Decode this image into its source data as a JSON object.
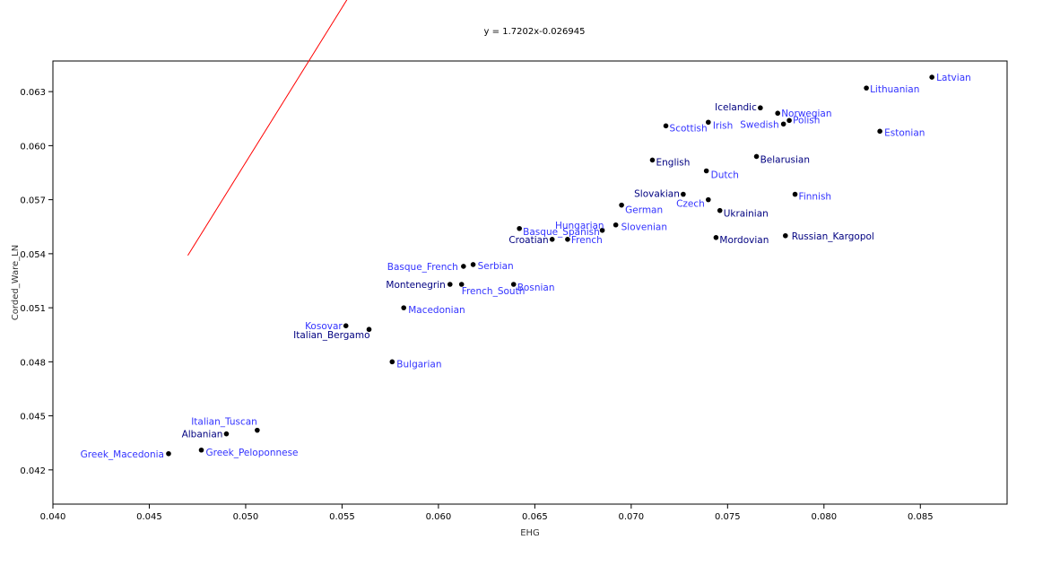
{
  "chart_data": {
    "type": "scatter",
    "title": "y = 1.7202x-0.026945",
    "xlabel": "EHG",
    "ylabel": "Corded_Ware_LN",
    "xlim": [
      0.04,
      0.0895
    ],
    "ylim": [
      0.0401,
      0.0647
    ],
    "xticks": [
      "0.040",
      "0.045",
      "0.050",
      "0.055",
      "0.060",
      "0.065",
      "0.070",
      "0.075",
      "0.080",
      "0.085"
    ],
    "yticks": [
      "0.042",
      "0.045",
      "0.048",
      "0.051",
      "0.054",
      "0.057",
      "0.060",
      "0.063"
    ],
    "trendline": {
      "slope": 1.7202,
      "intercept": -0.026945,
      "x_start": 0.047,
      "x_end": 0.0824,
      "color": "#ff0000"
    },
    "colors": {
      "blue_label": "#3333ff",
      "navy_label": "#000080",
      "point": "#000000",
      "axis": "#000000"
    },
    "points": [
      {
        "label": "Latvian",
        "x": 0.0856,
        "y": 0.0638,
        "color": "blue"
      },
      {
        "label": "Lithuanian",
        "x": 0.0822,
        "y": 0.0632,
        "color": "blue"
      },
      {
        "label": "Estonian",
        "x": 0.0829,
        "y": 0.0608,
        "color": "blue"
      },
      {
        "label": "Icelandic",
        "x": 0.0767,
        "y": 0.0621,
        "color": "navy"
      },
      {
        "label": "Norwegian",
        "x": 0.0776,
        "y": 0.0618,
        "color": "blue"
      },
      {
        "label": "Polish",
        "x": 0.0782,
        "y": 0.0614,
        "color": "blue"
      },
      {
        "label": "Swedish",
        "x": 0.0779,
        "y": 0.0612,
        "color": "blue"
      },
      {
        "label": "Irish",
        "x": 0.074,
        "y": 0.0613,
        "color": "blue"
      },
      {
        "label": "Scottish",
        "x": 0.0718,
        "y": 0.0611,
        "color": "blue"
      },
      {
        "label": "Belarusian",
        "x": 0.0765,
        "y": 0.0594,
        "color": "navy"
      },
      {
        "label": "English",
        "x": 0.0711,
        "y": 0.0592,
        "color": "navy"
      },
      {
        "label": "Dutch",
        "x": 0.0739,
        "y": 0.0586,
        "color": "blue"
      },
      {
        "label": "Finnish",
        "x": 0.0785,
        "y": 0.0573,
        "color": "blue"
      },
      {
        "label": "Slovakian",
        "x": 0.0727,
        "y": 0.0573,
        "color": "navy"
      },
      {
        "label": "Czech",
        "x": 0.074,
        "y": 0.057,
        "color": "blue"
      },
      {
        "label": "Ukrainian",
        "x": 0.0746,
        "y": 0.0564,
        "color": "navy"
      },
      {
        "label": "German",
        "x": 0.0695,
        "y": 0.0567,
        "color": "blue"
      },
      {
        "label": "Slovenian",
        "x": 0.0692,
        "y": 0.0556,
        "color": "blue"
      },
      {
        "label": "Hungarian",
        "x": 0.0685,
        "y": 0.0553,
        "color": "blue"
      },
      {
        "label": "Basque_Spanish",
        "x": 0.0642,
        "y": 0.0554,
        "color": "blue"
      },
      {
        "label": "Croatian",
        "x": 0.0659,
        "y": 0.0548,
        "color": "navy"
      },
      {
        "label": "French",
        "x": 0.0667,
        "y": 0.0548,
        "color": "blue"
      },
      {
        "label": "Mordovian",
        "x": 0.0744,
        "y": 0.0549,
        "color": "navy"
      },
      {
        "label": "Russian_Kargopol",
        "x": 0.078,
        "y": 0.055,
        "color": "navy"
      },
      {
        "label": "Basque_French",
        "x": 0.0613,
        "y": 0.0533,
        "color": "blue"
      },
      {
        "label": "Serbian",
        "x": 0.0618,
        "y": 0.0534,
        "color": "blue"
      },
      {
        "label": "Montenegrin",
        "x": 0.0606,
        "y": 0.0523,
        "color": "navy"
      },
      {
        "label": "French_South",
        "x": 0.0612,
        "y": 0.0523,
        "color": "blue"
      },
      {
        "label": "Bosnian",
        "x": 0.0639,
        "y": 0.0523,
        "color": "blue"
      },
      {
        "label": "Macedonian",
        "x": 0.0582,
        "y": 0.051,
        "color": "blue"
      },
      {
        "label": "Kosovar",
        "x": 0.0552,
        "y": 0.05,
        "color": "blue"
      },
      {
        "label": "Italian_Bergamo",
        "x": 0.0564,
        "y": 0.0498,
        "color": "navy"
      },
      {
        "label": "Bulgarian",
        "x": 0.0576,
        "y": 0.048,
        "color": "blue"
      },
      {
        "label": "Italian_Tuscan",
        "x": 0.0506,
        "y": 0.0442,
        "color": "blue"
      },
      {
        "label": "Albanian",
        "x": 0.049,
        "y": 0.044,
        "color": "navy"
      },
      {
        "label": "Greek_Peloponnese",
        "x": 0.0477,
        "y": 0.0431,
        "color": "blue"
      },
      {
        "label": "Greek_Macedonia",
        "x": 0.046,
        "y": 0.0429,
        "color": "blue"
      }
    ]
  }
}
